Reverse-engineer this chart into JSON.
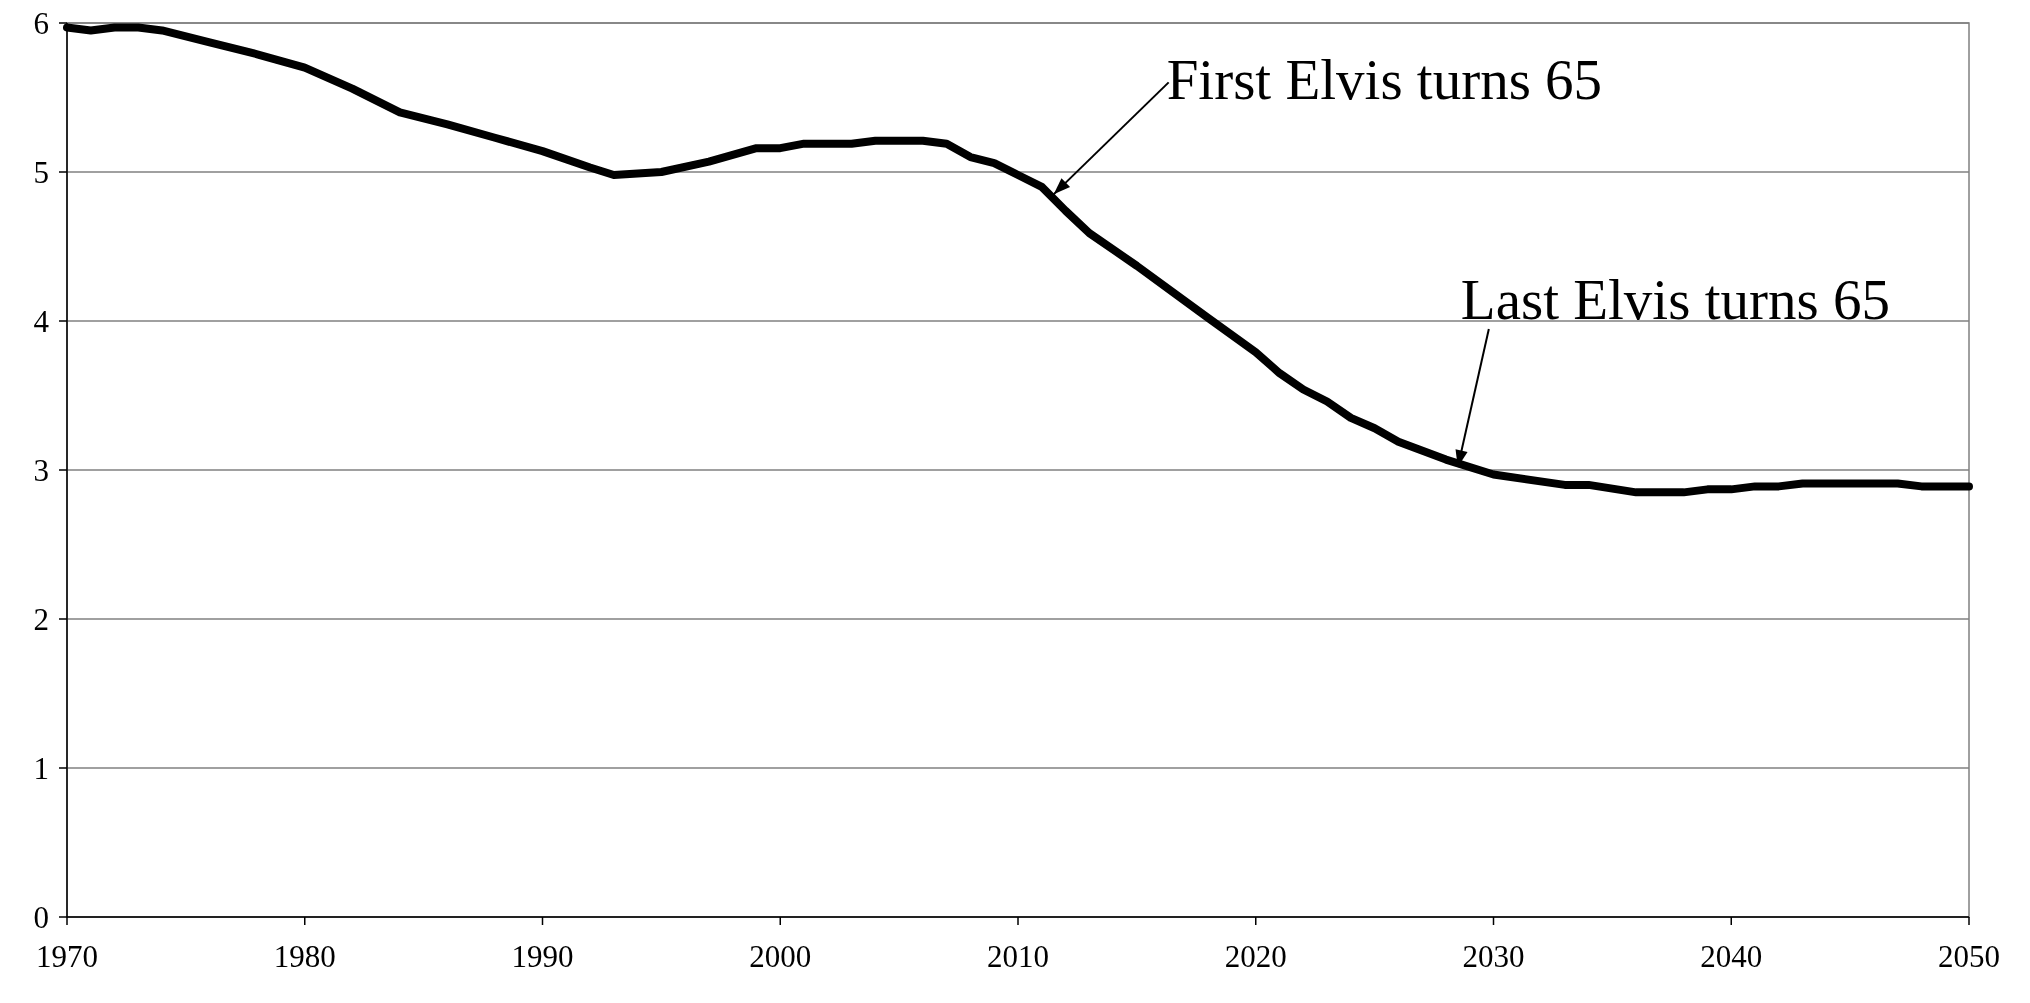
{
  "chart_data": {
    "type": "line",
    "x": [
      1970,
      1971,
      1972,
      1973,
      1974,
      1976,
      1978,
      1980,
      1982,
      1984,
      1986,
      1988,
      1990,
      1992,
      1993,
      1995,
      1997,
      1999,
      2000,
      2001,
      2003,
      2004,
      2006,
      2007,
      2008,
      2009,
      2010,
      2011,
      2012,
      2013,
      2015,
      2018,
      2020,
      2021,
      2022,
      2023,
      2024,
      2025,
      2026,
      2028,
      2030,
      2033,
      2034,
      2036,
      2038,
      2039,
      2040,
      2041,
      2042,
      2043,
      2047,
      2048,
      2050
    ],
    "series": [
      {
        "color": "#000000",
        "values": [
          5.97,
          5.95,
          5.97,
          5.97,
          5.95,
          5.87,
          5.79,
          5.7,
          5.56,
          5.4,
          5.32,
          5.23,
          5.14,
          5.03,
          4.98,
          5.0,
          5.07,
          5.16,
          5.16,
          5.19,
          5.19,
          5.21,
          5.21,
          5.19,
          5.1,
          5.06,
          4.98,
          4.9,
          4.74,
          4.59,
          4.37,
          4.02,
          3.79,
          3.65,
          3.54,
          3.46,
          3.35,
          3.28,
          3.19,
          3.07,
          2.97,
          2.9,
          2.9,
          2.85,
          2.85,
          2.87,
          2.87,
          2.89,
          2.89,
          2.91,
          2.91,
          2.89,
          2.89
        ]
      }
    ],
    "xlim": [
      1970,
      2050
    ],
    "xticks": [
      1970,
      1980,
      1990,
      2000,
      2010,
      2020,
      2030,
      2040,
      2050
    ],
    "ylim": [
      0,
      6
    ],
    "yticks": [
      0,
      1,
      2,
      3,
      4,
      5,
      6
    ],
    "grid": "y",
    "marker": "none",
    "line_style": "solid",
    "annotations": [
      {
        "text": "First Elvis turns 65",
        "x": 2011.5,
        "y": 4.85
      },
      {
        "text": "Last Elvis turns 65",
        "x": 2028.5,
        "y": 3.02
      }
    ]
  }
}
